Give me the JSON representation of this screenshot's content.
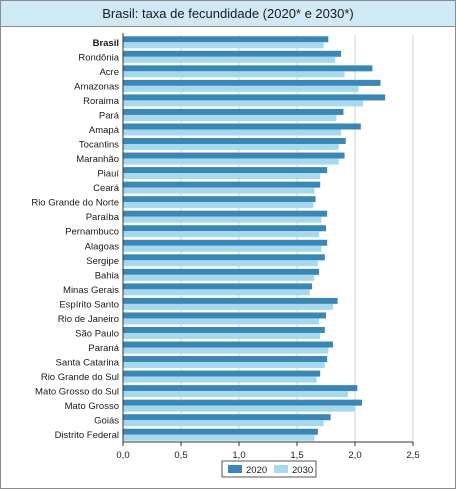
{
  "chart_data": {
    "type": "bar",
    "orientation": "horizontal",
    "title": "Brasil: taxa de fecundidade (2020* e 2030*)",
    "categories": [
      "Brasil",
      "Rondônia",
      "Acre",
      "Amazonas",
      "Roraima",
      "Pará",
      "Amapá",
      "Tocantins",
      "Maranhão",
      "Piauí",
      "Ceará",
      "Rio Grande do Norte",
      "Paraíba",
      "Pernambuco",
      "Alagoas",
      "Sergipe",
      "Bahia",
      "Minas Gerais",
      "Espírito Santo",
      "Rio de Janeiro",
      "São Paulo",
      "Paraná",
      "Santa Catarina",
      "Rio Grande do Sul",
      "Mato Grosso do Sul",
      "Mato Grosso",
      "Goiás",
      "Distrito Federal"
    ],
    "bold_categories": [
      "Brasil"
    ],
    "series": [
      {
        "name": "2020",
        "color": "#3a87b5",
        "values": [
          1.77,
          1.88,
          2.15,
          2.22,
          2.26,
          1.9,
          2.05,
          1.92,
          1.91,
          1.76,
          1.7,
          1.66,
          1.76,
          1.75,
          1.76,
          1.74,
          1.69,
          1.63,
          1.85,
          1.75,
          1.74,
          1.81,
          1.76,
          1.7,
          2.02,
          2.06,
          1.79,
          1.68
        ]
      },
      {
        "name": "2030",
        "color": "#a6d9ee",
        "values": [
          1.73,
          1.83,
          1.91,
          2.03,
          2.07,
          1.84,
          1.88,
          1.86,
          1.86,
          1.7,
          1.65,
          1.64,
          1.71,
          1.69,
          1.71,
          1.68,
          1.65,
          1.61,
          1.81,
          1.69,
          1.7,
          1.77,
          1.74,
          1.67,
          1.94,
          2.0,
          1.73,
          1.65
        ]
      }
    ],
    "xlim": [
      0,
      2.5
    ],
    "xticks": [
      "0,0",
      "0,5",
      "1,0",
      "1,5",
      "2,0",
      "2,5"
    ],
    "xtick_values": [
      0,
      0.5,
      1.0,
      1.5,
      2.0,
      2.5
    ],
    "legend_position": "bottom-center",
    "grid": "vertical"
  }
}
